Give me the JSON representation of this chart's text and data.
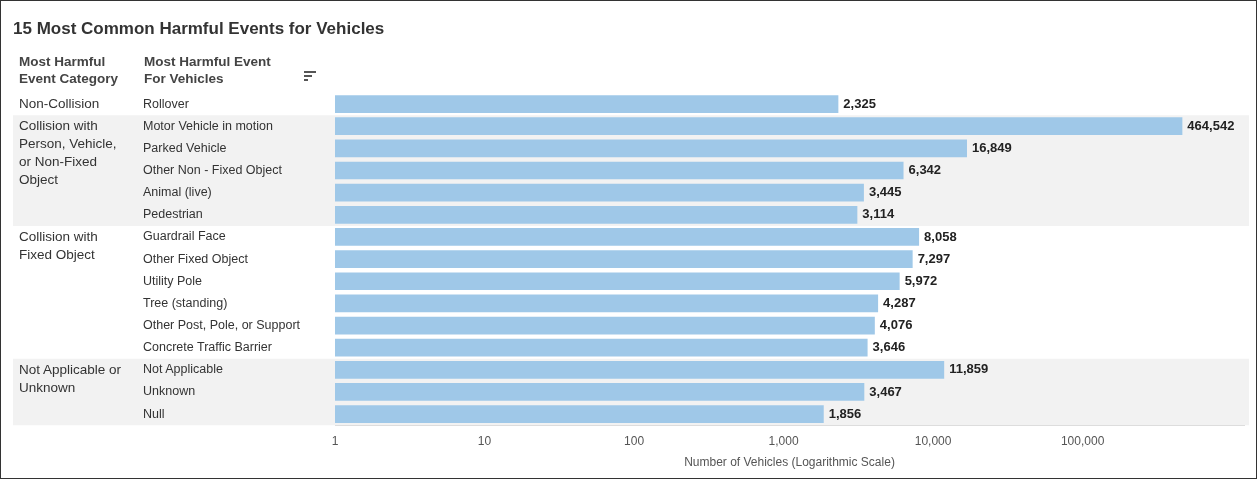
{
  "chart_data": {
    "type": "bar",
    "orientation": "horizontal",
    "title": "15 Most Common Harmful Events for Vehicles",
    "categories": [
      "Rollover",
      "Motor Vehicle in motion",
      "Parked Vehicle",
      "Other Non - Fixed Object",
      "Animal (live)",
      "Pedestrian",
      "Guardrail Face",
      "Other Fixed Object",
      "Utility Pole",
      "Tree (standing)",
      "Other Post, Pole, or Support",
      "Concrete Traffic Barrier",
      "Not Applicable",
      "Unknown",
      "Null"
    ],
    "values": [
      2325,
      464542,
      16849,
      6342,
      3445,
      3114,
      8058,
      7297,
      5972,
      4287,
      4076,
      3646,
      11859,
      3467,
      1856
    ],
    "color": "#9fc8e8",
    "log": "x",
    "xlim": [
      1,
      1200000
    ],
    "xticks": [
      1,
      10,
      100,
      {
        "value": 1000,
        "label": "1,000"
      },
      {
        "value": 10000,
        "label": "10,000"
      },
      {
        "value": 100000,
        "label": "100,000"
      }
    ],
    "xlabel": "Number of Vehicles (Logarithmic Scale)",
    "grid": false,
    "legend": false,
    "value_labels": [
      "2,325",
      "464,542",
      "16,849",
      "6,342",
      "3,445",
      "3,114",
      "8,058",
      "7,297",
      "5,972",
      "4,287",
      "4,076",
      "3,646",
      "11,859",
      "3,467",
      "1,856"
    ],
    "annotations": [
      "Most Harmful Event Category",
      "Most Harmful Event For Vehicles",
      "Non-Collision",
      "Collision with Person, Vehicle, or Non-Fixed Object",
      "Collision with Fixed Object",
      "Not Applicable or Unknown"
    ]
  }
}
